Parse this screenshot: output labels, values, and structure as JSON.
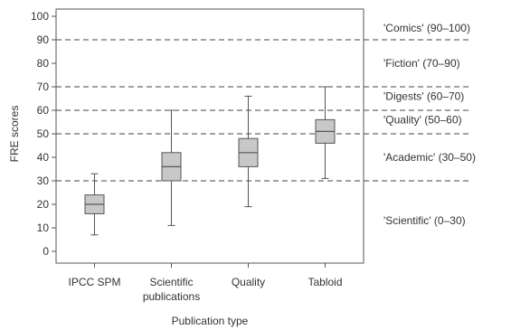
{
  "chart_data": {
    "type": "box",
    "xlabel": "Publication type",
    "ylabel": "FRE scores",
    "ylim": [
      0,
      100
    ],
    "yticks": [
      0,
      10,
      20,
      30,
      40,
      50,
      60,
      70,
      80,
      90,
      100
    ],
    "categories": [
      {
        "label_lines": [
          "IPCC SPM"
        ],
        "min": 7,
        "q1": 16,
        "median": 20,
        "q3": 24,
        "max": 33
      },
      {
        "label_lines": [
          "Scientific",
          "publications"
        ],
        "min": 11,
        "q1": 30,
        "median": 36,
        "q3": 42,
        "max": 60
      },
      {
        "label_lines": [
          "Quality"
        ],
        "min": 19,
        "q1": 36,
        "median": 42,
        "q3": 48,
        "max": 66
      },
      {
        "label_lines": [
          "Tabloid"
        ],
        "min": 31,
        "q1": 46,
        "median": 51,
        "q3": 56,
        "max": 70
      }
    ],
    "reference_lines": [
      30,
      50,
      60,
      70,
      90
    ],
    "bands": [
      {
        "label": "'Comics' (90–100)",
        "y": 95
      },
      {
        "label": "'Fiction' (70–90)",
        "y": 80
      },
      {
        "label": "'Digests' (60–70)",
        "y": 66
      },
      {
        "label": "'Quality' (50–60)",
        "y": 56
      },
      {
        "label": "'Academic' (30–50)",
        "y": 40
      },
      {
        "label": "'Scientific' (0–30)",
        "y": 13
      }
    ],
    "box_fill": "#c8c8c8",
    "line_color": "#555555",
    "grid": false
  }
}
